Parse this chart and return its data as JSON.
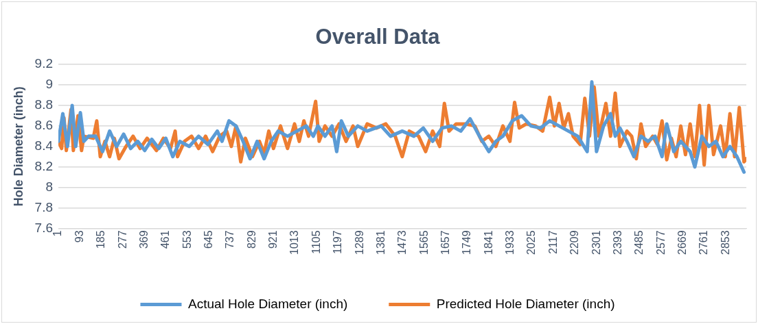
{
  "chart_data": {
    "type": "line",
    "title": "Overall Data",
    "ylabel": "Hole Diameter (inch)",
    "ylim": [
      7.6,
      9.2
    ],
    "yticks": [
      7.6,
      7.8,
      8,
      8.2,
      8.4,
      8.6,
      8.8,
      9,
      9.2
    ],
    "xlim": [
      1,
      2940
    ],
    "xticks": [
      1,
      93,
      185,
      277,
      369,
      461,
      553,
      645,
      737,
      829,
      921,
      1013,
      1105,
      1197,
      1289,
      1381,
      1473,
      1565,
      1657,
      1749,
      1841,
      1933,
      2025,
      2117,
      2209,
      2301,
      2393,
      2485,
      2577,
      2669,
      2761,
      2853
    ],
    "grid": "y",
    "legend": "bottom",
    "series": [
      {
        "name": "Actual Hole Diameter (inch)",
        "color": "#5b9bd5",
        "x": [
          1,
          20,
          40,
          60,
          75,
          95,
          110,
          130,
          160,
          190,
          220,
          250,
          280,
          310,
          340,
          370,
          400,
          430,
          460,
          490,
          520,
          560,
          600,
          640,
          680,
          700,
          730,
          760,
          790,
          820,
          850,
          880,
          910,
          940,
          980,
          1020,
          1060,
          1090,
          1110,
          1140,
          1170,
          1190,
          1210,
          1240,
          1280,
          1320,
          1380,
          1420,
          1470,
          1520,
          1560,
          1600,
          1640,
          1680,
          1720,
          1760,
          1800,
          1840,
          1870,
          1900,
          1940,
          1980,
          2020,
          2060,
          2100,
          2140,
          2180,
          2220,
          2260,
          2280,
          2300,
          2330,
          2360,
          2380,
          2400,
          2430,
          2460,
          2490,
          2520,
          2550,
          2580,
          2600,
          2630,
          2660,
          2700,
          2720,
          2750,
          2780,
          2810,
          2840,
          2870,
          2900,
          2930
        ],
        "values": [
          8.45,
          8.72,
          8.4,
          8.8,
          8.4,
          8.73,
          8.45,
          8.5,
          8.5,
          8.35,
          8.55,
          8.4,
          8.52,
          8.38,
          8.45,
          8.36,
          8.47,
          8.38,
          8.48,
          8.3,
          8.45,
          8.4,
          8.5,
          8.42,
          8.55,
          8.45,
          8.65,
          8.6,
          8.45,
          8.28,
          8.45,
          8.28,
          8.45,
          8.55,
          8.5,
          8.55,
          8.6,
          8.5,
          8.6,
          8.5,
          8.6,
          8.35,
          8.65,
          8.5,
          8.6,
          8.55,
          8.6,
          8.5,
          8.55,
          8.5,
          8.58,
          8.45,
          8.58,
          8.6,
          8.55,
          8.67,
          8.5,
          8.35,
          8.45,
          8.5,
          8.65,
          8.7,
          8.6,
          8.58,
          8.65,
          8.6,
          8.55,
          8.5,
          8.35,
          9.03,
          8.35,
          8.6,
          8.72,
          8.5,
          8.58,
          8.45,
          8.3,
          8.5,
          8.45,
          8.5,
          8.3,
          8.62,
          8.35,
          8.45,
          8.35,
          8.2,
          8.5,
          8.4,
          8.45,
          8.3,
          8.4,
          8.3,
          8.15
        ]
      },
      {
        "name": "Predicted Hole Diameter (inch)",
        "color": "#ed7d31",
        "x": [
          1,
          15,
          25,
          35,
          55,
          65,
          85,
          100,
          110,
          150,
          165,
          180,
          200,
          220,
          240,
          260,
          290,
          320,
          350,
          380,
          420,
          450,
          480,
          500,
          510,
          540,
          570,
          600,
          630,
          660,
          690,
          720,
          740,
          760,
          780,
          800,
          830,
          860,
          880,
          900,
          920,
          950,
          980,
          1010,
          1030,
          1050,
          1070,
          1100,
          1115,
          1140,
          1170,
          1200,
          1230,
          1260,
          1280,
          1320,
          1360,
          1400,
          1440,
          1470,
          1500,
          1540,
          1570,
          1600,
          1630,
          1650,
          1670,
          1700,
          1740,
          1780,
          1810,
          1840,
          1870,
          1900,
          1930,
          1950,
          1970,
          2000,
          2040,
          2070,
          2100,
          2120,
          2140,
          2160,
          2180,
          2200,
          2230,
          2250,
          2270,
          2290,
          2310,
          2340,
          2360,
          2380,
          2400,
          2430,
          2450,
          2470,
          2490,
          2510,
          2540,
          2560,
          2580,
          2600,
          2620,
          2640,
          2660,
          2680,
          2700,
          2720,
          2740,
          2760,
          2780,
          2800,
          2830,
          2850,
          2870,
          2890,
          2910,
          2930,
          2940
        ],
        "values": [
          8.45,
          8.38,
          8.68,
          8.36,
          8.76,
          8.36,
          8.7,
          8.36,
          8.5,
          8.48,
          8.65,
          8.3,
          8.45,
          8.3,
          8.48,
          8.28,
          8.4,
          8.5,
          8.38,
          8.48,
          8.36,
          8.48,
          8.38,
          8.55,
          8.3,
          8.45,
          8.5,
          8.38,
          8.5,
          8.35,
          8.5,
          8.55,
          8.4,
          8.6,
          8.25,
          8.48,
          8.3,
          8.45,
          8.33,
          8.55,
          8.38,
          8.6,
          8.38,
          8.62,
          8.45,
          8.65,
          8.5,
          8.84,
          8.45,
          8.6,
          8.5,
          8.62,
          8.45,
          8.6,
          8.4,
          8.62,
          8.58,
          8.62,
          8.5,
          8.3,
          8.55,
          8.5,
          8.35,
          8.55,
          8.4,
          8.82,
          8.55,
          8.62,
          8.62,
          8.6,
          8.45,
          8.5,
          8.4,
          8.6,
          8.45,
          8.83,
          8.58,
          8.62,
          8.6,
          8.55,
          8.88,
          8.6,
          8.82,
          8.58,
          8.72,
          8.5,
          8.42,
          8.87,
          8.5,
          8.98,
          8.5,
          8.82,
          8.5,
          8.92,
          8.4,
          8.55,
          8.5,
          8.28,
          8.62,
          8.4,
          8.5,
          8.42,
          8.65,
          8.27,
          8.48,
          8.3,
          8.6,
          8.32,
          8.62,
          8.3,
          8.8,
          8.22,
          8.8,
          8.32,
          8.6,
          8.3,
          8.72,
          8.3,
          8.78,
          8.25,
          8.28
        ]
      }
    ]
  }
}
